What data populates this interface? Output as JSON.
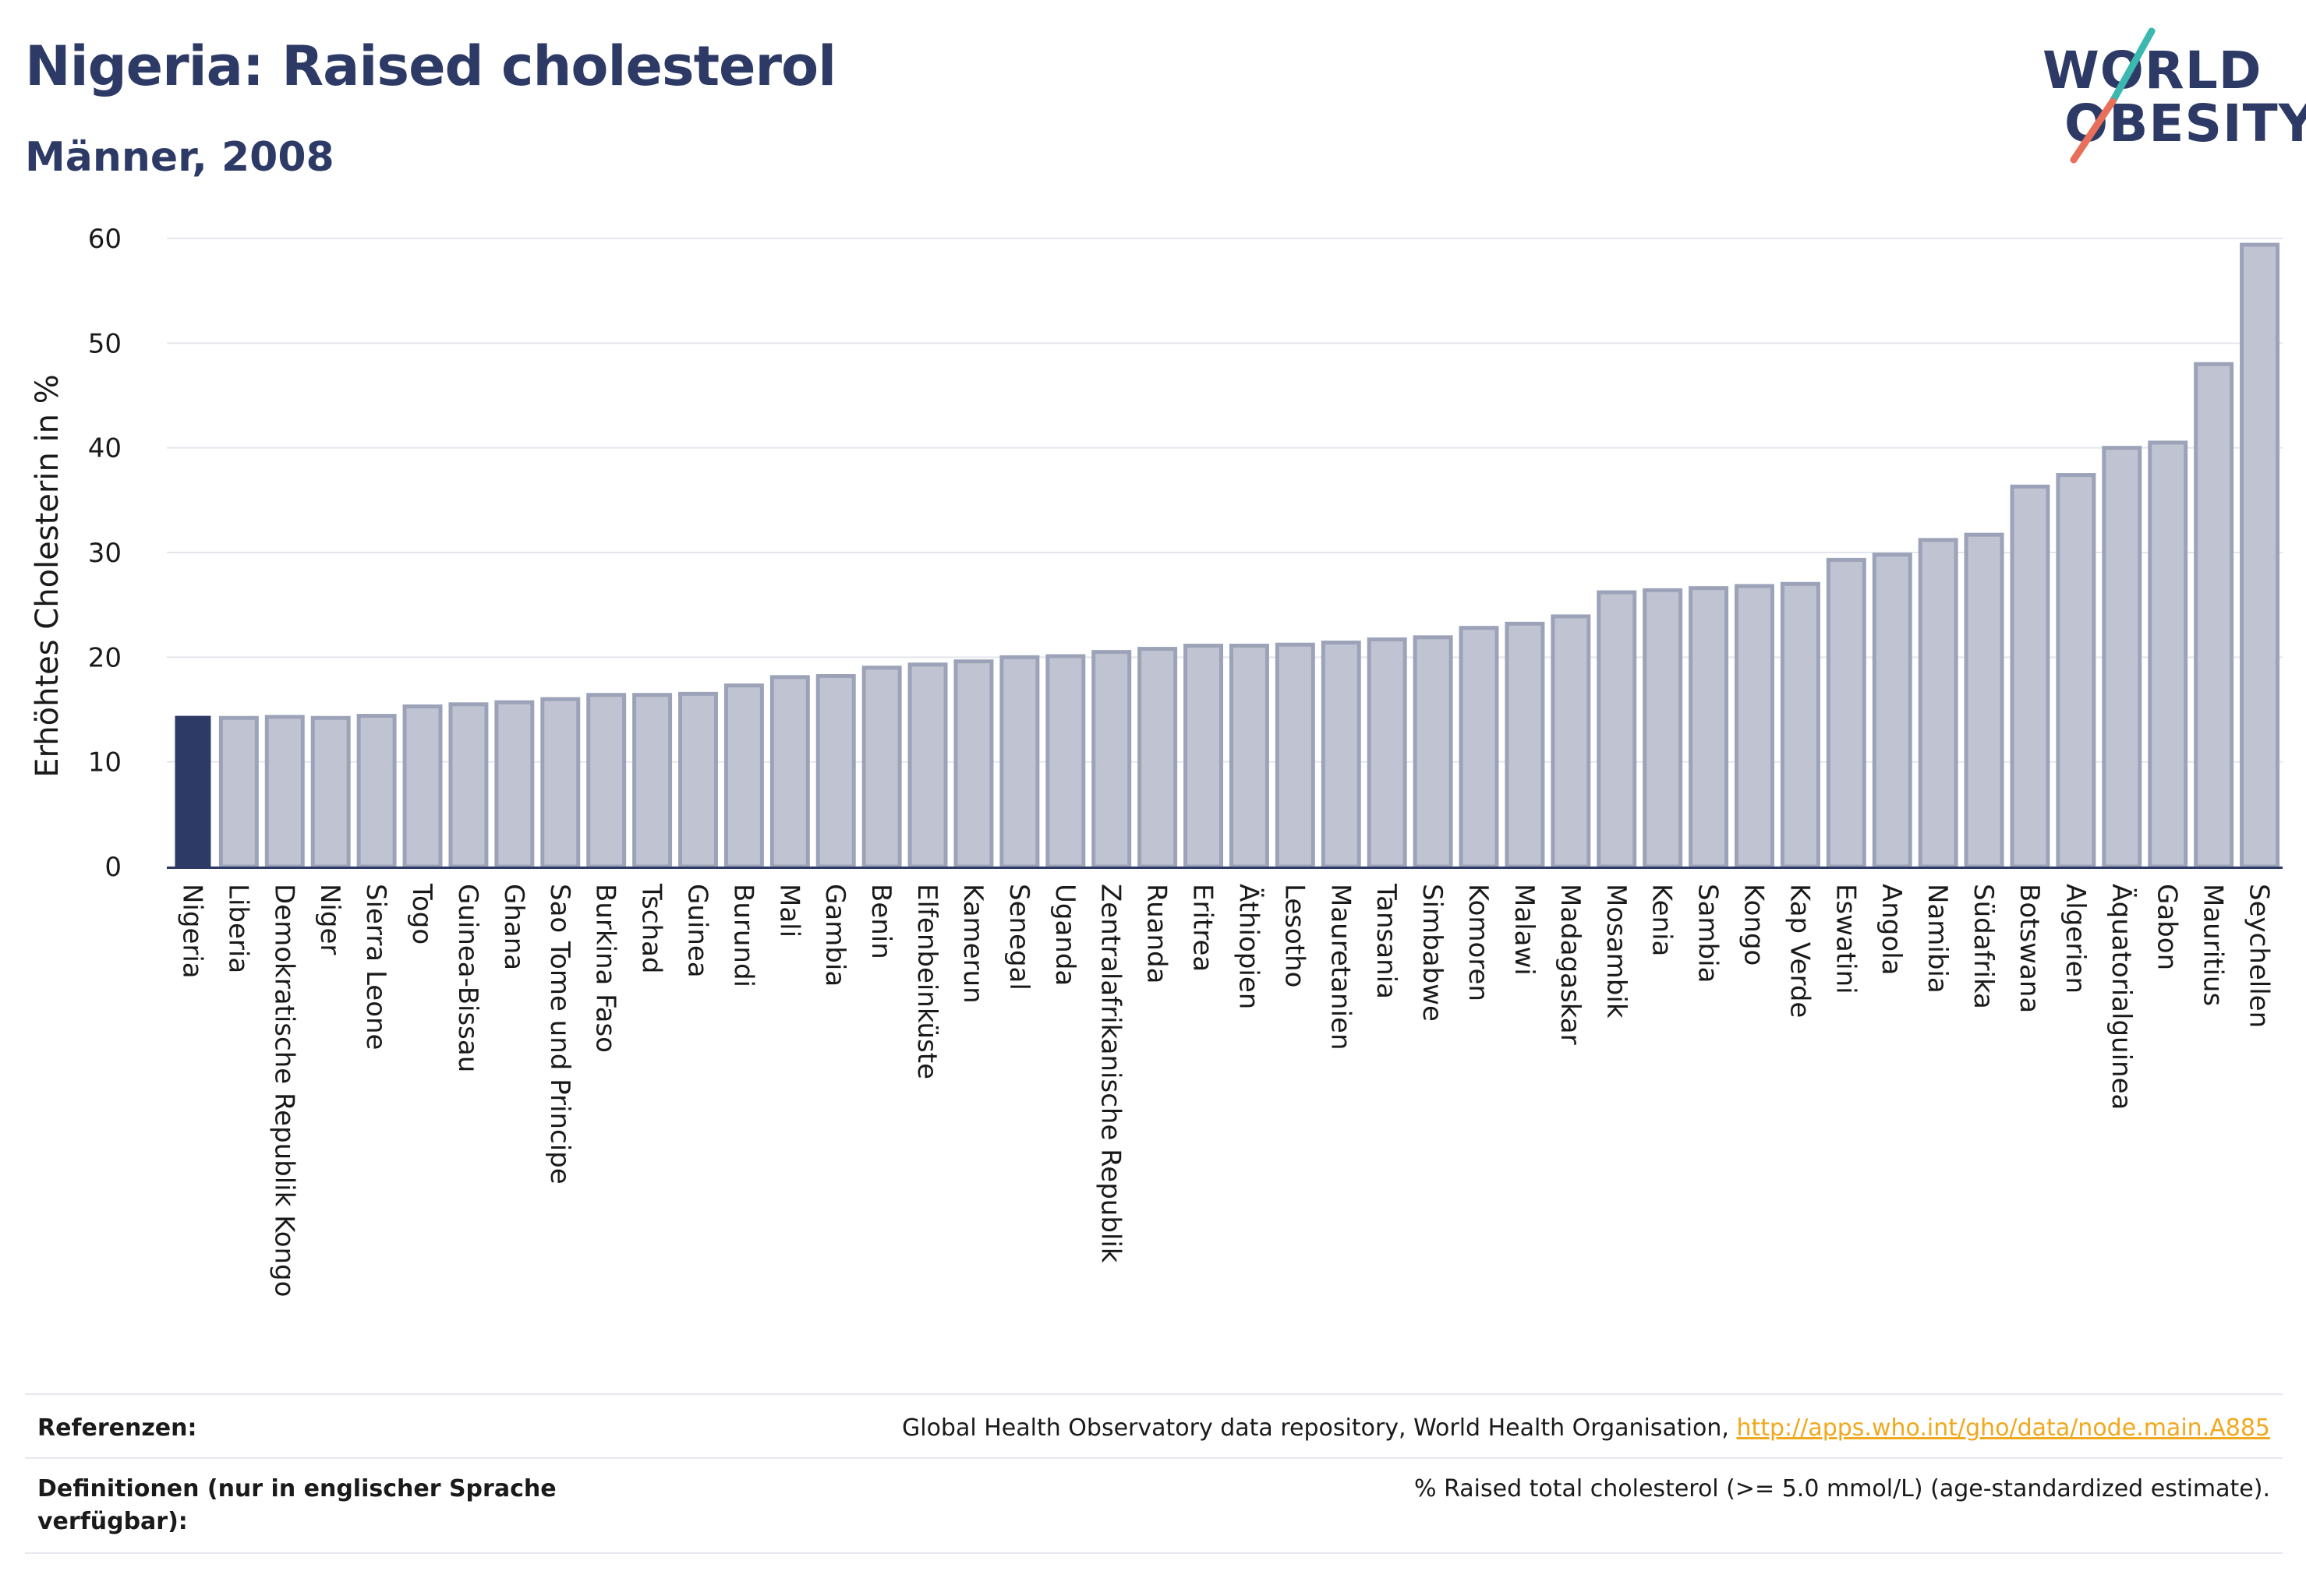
{
  "header": {
    "title": "Nigeria: Raised cholesterol",
    "subtitle": "Männer, 2008"
  },
  "logo": {
    "line1": "WORLD",
    "line2": "OBESITY",
    "colors": {
      "text": "#2d3a66",
      "slash_teal": "#3bb8b0",
      "slash_coral": "#e8705a"
    }
  },
  "chart_data": {
    "type": "bar",
    "title": "",
    "ylabel": "Erhöhtes Cholesterin in %",
    "xlabel": "",
    "ylim": [
      0,
      60
    ],
    "yticks": [
      0,
      10,
      20,
      30,
      40,
      50,
      60
    ],
    "grid": true,
    "highlight": "Nigeria",
    "colors": {
      "highlight": "#2d3a66",
      "bar_fill": "#c0c4d2",
      "bar_stroke": "#9ca2b8"
    },
    "categories": [
      "Nigeria",
      "Liberia",
      "Demokratische Republik Kongo",
      "Niger",
      "Sierra Leone",
      "Togo",
      "Guinea-Bissau",
      "Ghana",
      "Sao Tome und Principe",
      "Burkina Faso",
      "Tschad",
      "Guinea",
      "Burundi",
      "Mali",
      "Gambia",
      "Benin",
      "Elfenbeinküste",
      "Kamerun",
      "Senegal",
      "Uganda",
      "Zentralafrikanische Republik",
      "Ruanda",
      "Eritrea",
      "Äthiopien",
      "Lesotho",
      "Mauretanien",
      "Tansania",
      "Simbabwe",
      "Komoren",
      "Malawi",
      "Madagaskar",
      "Mosambik",
      "Kenia",
      "Sambia",
      "Kongo",
      "Kap Verde",
      "Eswatini",
      "Angola",
      "Namibia",
      "Südafrika",
      "Botswana",
      "Algerien",
      "Äquatorialguinea",
      "Gabon",
      "Mauritius",
      "Seychellen"
    ],
    "values": [
      14.4,
      14.2,
      14.3,
      14.2,
      14.4,
      15.3,
      15.5,
      15.7,
      16.0,
      16.4,
      16.4,
      16.5,
      17.3,
      18.1,
      18.2,
      19.0,
      19.3,
      19.6,
      20.0,
      20.1,
      20.5,
      20.8,
      21.1,
      21.1,
      21.2,
      21.4,
      21.7,
      21.9,
      22.8,
      23.2,
      23.9,
      26.2,
      26.4,
      26.6,
      26.8,
      27.0,
      29.3,
      29.8,
      31.2,
      31.7,
      36.3,
      37.4,
      40.0,
      40.5,
      48.0,
      59.4
    ]
  },
  "footer": {
    "references_label": "Referenzen:",
    "references_text": "Global Health Observatory data repository, World Health Organisation,",
    "references_link": "http://apps.who.int/gho/data/node.main.A885",
    "definitions_label_line1": "Definitionen (nur in englischer Sprache",
    "definitions_label_line2": "verfügbar):",
    "definitions_text": "% Raised total cholesterol (>= 5.0 mmol/L) (age-standardized estimate)."
  }
}
